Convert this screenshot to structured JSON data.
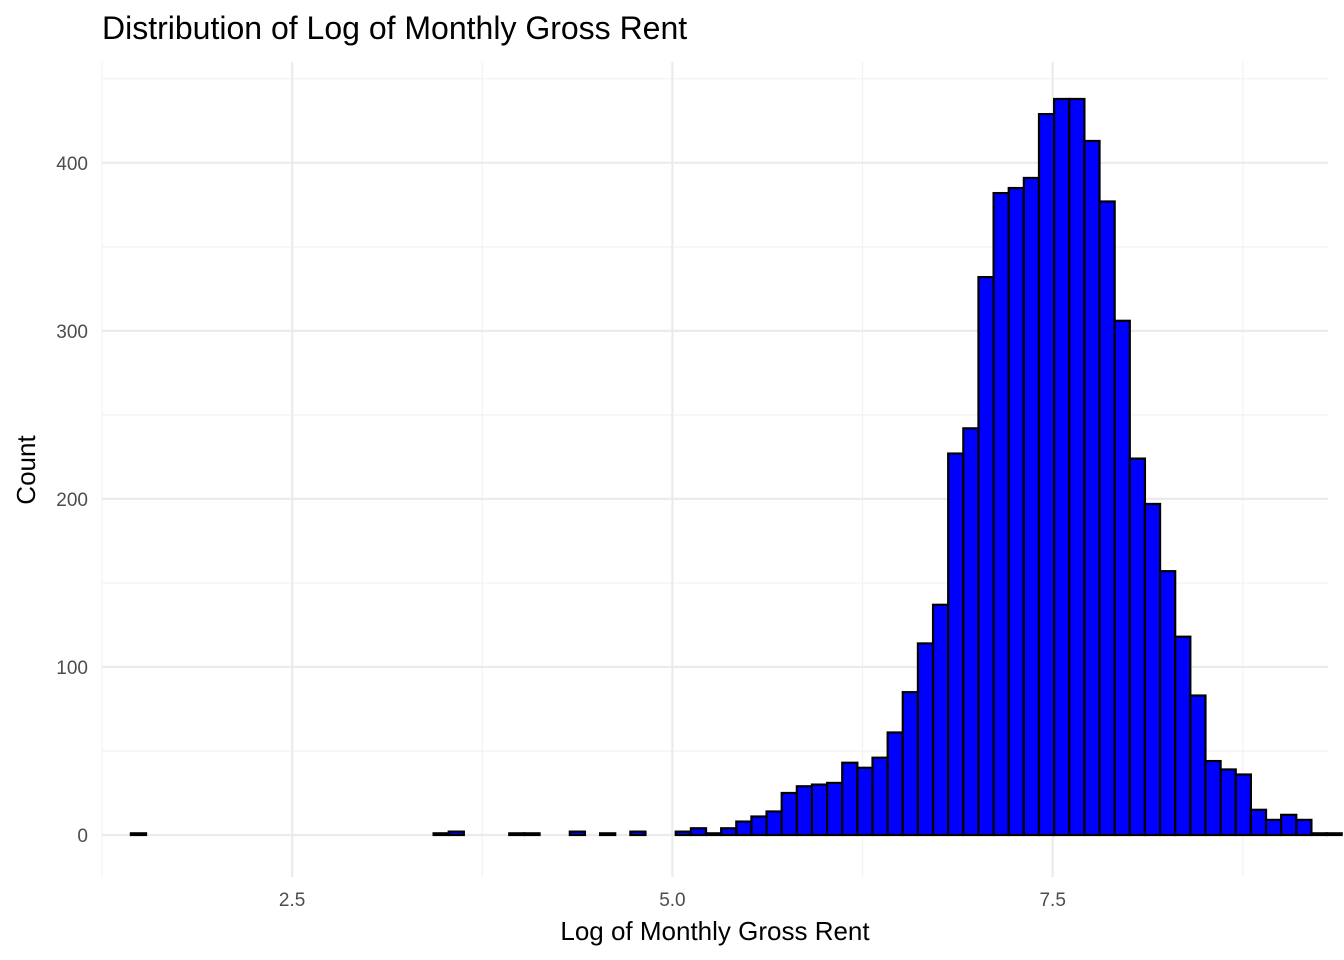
{
  "chart_data": {
    "type": "bar",
    "title": "Distribution of Log of Monthly Gross Rent",
    "xlabel": "Log of Monthly Gross Rent",
    "ylabel": "Count",
    "bar_color": "#0000ff",
    "bar_outline": "#000000",
    "grid": true,
    "legend": "none",
    "xlim": [
      1.25,
      9.31
    ],
    "ylim": [
      -25,
      460
    ],
    "x_ticks": [
      2.5,
      5.0,
      7.5
    ],
    "x_tick_labels": [
      "2.5",
      "5.0",
      "7.5"
    ],
    "y_ticks": [
      0,
      100,
      200,
      300,
      400
    ],
    "y_tick_labels": [
      "0",
      "100",
      "200",
      "300",
      "400"
    ],
    "bin_width": 0.0995,
    "bin_start": 1.44,
    "counts": [
      1,
      0,
      0,
      0,
      0,
      0,
      0,
      0,
      0,
      0,
      0,
      0,
      0,
      0,
      0,
      0,
      0,
      0,
      0,
      0,
      1,
      2,
      0,
      0,
      0,
      1,
      1,
      0,
      0,
      2,
      0,
      1,
      0,
      2,
      0,
      0,
      2,
      4,
      1,
      4,
      8,
      11,
      14,
      25,
      29,
      30,
      31,
      43,
      40,
      46,
      61,
      85,
      114,
      137,
      227,
      242,
      332,
      382,
      385,
      391,
      429,
      438,
      438,
      413,
      377,
      306,
      224,
      197,
      157,
      118,
      83,
      44,
      39,
      36,
      15,
      9,
      12,
      9,
      1,
      1
    ]
  }
}
